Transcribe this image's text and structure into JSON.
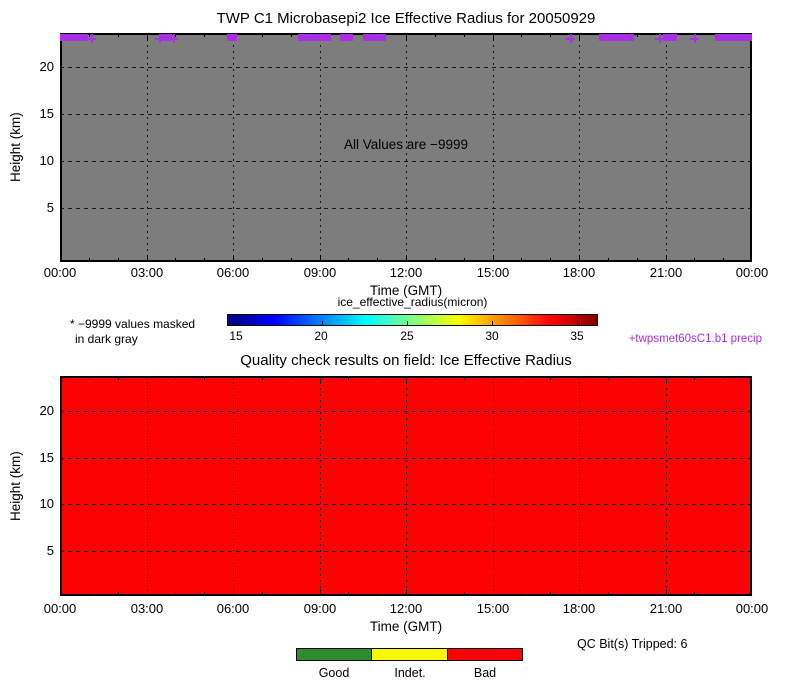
{
  "plot1": {
    "title": "TWP C1 Microbasepi2 Ice Effective Radius for 20050929",
    "ylabel": "Height (km)",
    "xlabel": "Time (GMT)",
    "annotation": "All Values are −9999",
    "bg_color": "#7D7D7D",
    "x_tick_labels": [
      "00:00",
      "03:00",
      "06:00",
      "09:00",
      "12:00",
      "15:00",
      "18:00",
      "21:00",
      "00:00"
    ],
    "y_tick_values": [
      20,
      15,
      10,
      5
    ]
  },
  "colorbar": {
    "title": "ice_effective_radius(micron)",
    "tick_values": [
      15,
      20,
      25,
      30,
      35
    ],
    "vmin": 14.5,
    "vmax": 36.2,
    "colormap": "jet"
  },
  "notes": {
    "masked_line1": "* −9999 values masked",
    "masked_line2": "in dark gray",
    "precip_label": "+twpsmet60sC1.b1 precip",
    "precip_color": "#AC2FE8"
  },
  "plot2": {
    "title": "Quality check results on field: Ice Effective Radius",
    "ylabel": "Height (km)",
    "xlabel": "Time (GMT)",
    "bg_color": "#FB0303",
    "x_tick_labels": [
      "00:00",
      "03:00",
      "06:00",
      "09:00",
      "12:00",
      "15:00",
      "18:00",
      "21:00",
      "00:00"
    ],
    "y_tick_values": [
      20,
      15,
      10,
      5
    ]
  },
  "qc": {
    "tripped_text": "QC Bit(s) Tripped: 6",
    "legend": [
      {
        "label": "Good",
        "color": "#2E8B2E"
      },
      {
        "label": "Indet.",
        "color": "#F8F800"
      },
      {
        "label": "Bad",
        "color": "#FB0303"
      }
    ]
  },
  "chart_data": [
    {
      "type": "heatmap",
      "title": "TWP C1 Microbasepi2 Ice Effective Radius for 20050929",
      "xlabel": "Time (GMT)",
      "ylabel": "Height (km)",
      "x_tick_labels": [
        "00:00",
        "03:00",
        "06:00",
        "09:00",
        "12:00",
        "15:00",
        "18:00",
        "21:00",
        "00:00"
      ],
      "x_range_hours": [
        0,
        24
      ],
      "y_ticks_km": [
        5,
        10,
        15,
        20
      ],
      "y_range_km": [
        0,
        23.6
      ],
      "grid": "dashed, 3-hour and 5-km intervals",
      "values": "all -9999 (missing); entire field masked in dark gray",
      "annotation": "All Values are −9999",
      "colorbar": {
        "label": "ice_effective_radius(micron)",
        "ticks": [
          15,
          20,
          25,
          30,
          35
        ],
        "range": [
          14.5,
          36.2
        ],
        "colormap": "jet"
      },
      "precip_overlay": {
        "source_label": "+twpsmet60sC1.b1 precip",
        "marker_color": "#AC2FE8",
        "segments_hours": [
          [
            0,
            0.97
          ],
          [
            3.5,
            3.9
          ],
          [
            5.8,
            6.15
          ],
          [
            8.25,
            9.4
          ],
          [
            9.7,
            10.15
          ],
          [
            10.5,
            11.3
          ],
          [
            18.7,
            19.9
          ],
          [
            20.9,
            21.4
          ],
          [
            22.7,
            24
          ]
        ],
        "point_hours": [
          1.1,
          3.45,
          3.95,
          17.7,
          20.8,
          22.0
        ]
      }
    },
    {
      "type": "heatmap",
      "title": "Quality check results on field: Ice Effective Radius",
      "xlabel": "Time (GMT)",
      "ylabel": "Height (km)",
      "x_tick_labels": [
        "00:00",
        "03:00",
        "06:00",
        "09:00",
        "12:00",
        "15:00",
        "18:00",
        "21:00",
        "00:00"
      ],
      "x_range_hours": [
        0,
        24
      ],
      "y_ticks_km": [
        5,
        10,
        15,
        20
      ],
      "y_range_km": [
        0,
        23.8
      ],
      "grid": "dashed, 3-hour and 5-km intervals",
      "values": "all Bad (red) for entire day at all heights",
      "legend": [
        "Good",
        "Indet.",
        "Bad"
      ],
      "qc_bits_tripped": 6
    }
  ]
}
